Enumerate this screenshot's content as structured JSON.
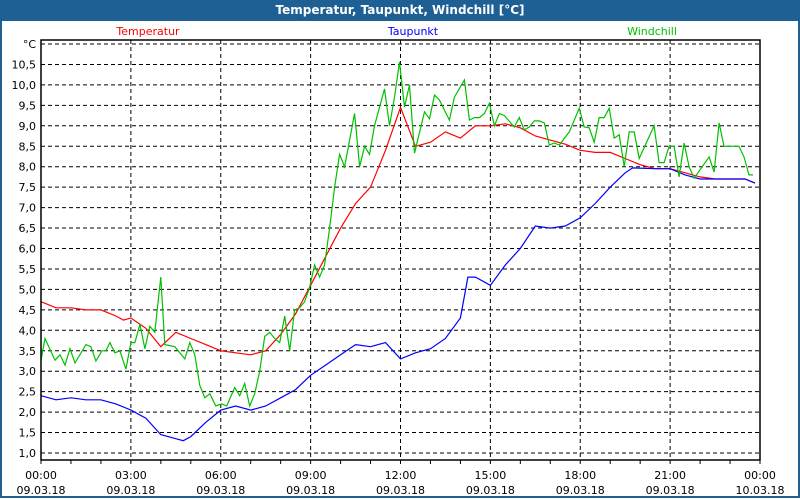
{
  "window": {
    "title": "Temperatur, Taupunkt, Windchill [°C]"
  },
  "chart_data": {
    "type": "line",
    "title": "Temperatur, Taupunkt, Windchill [°C]",
    "ylabel": "°C",
    "ylim": [
      1.0,
      11.0
    ],
    "yticks": [
      "1,0",
      "1,5",
      "2,0",
      "2,5",
      "3,0",
      "3,5",
      "4,0",
      "4,5",
      "5,0",
      "5,5",
      "6,0",
      "6,5",
      "7,0",
      "7,5",
      "8,0",
      "8,5",
      "9,0",
      "9,5",
      "10,0",
      "10,5"
    ],
    "xlim": [
      "09.03.18 00:00",
      "10.03.18 00:00"
    ],
    "xticks": [
      {
        "time": "00:00",
        "date": "09.03.18"
      },
      {
        "time": "03:00",
        "date": "09.03.18"
      },
      {
        "time": "06:00",
        "date": "09.03.18"
      },
      {
        "time": "09:00",
        "date": "09.03.18"
      },
      {
        "time": "12:00",
        "date": "09.03.18"
      },
      {
        "time": "15:00",
        "date": "09.03.18"
      },
      {
        "time": "18:00",
        "date": "09.03.18"
      },
      {
        "time": "21:00",
        "date": "09.03.18"
      },
      {
        "time": "00:00",
        "date": "10.03.18"
      }
    ],
    "grid": true,
    "legend_placement": "top",
    "series": [
      {
        "name": "Temperatur",
        "color": "#ff0000",
        "x": [
          "00:00",
          "00:30",
          "01:00",
          "01:30",
          "02:00",
          "02:30",
          "02:45",
          "03:00",
          "03:30",
          "04:00",
          "04:30",
          "05:00",
          "05:30",
          "06:00",
          "06:30",
          "07:00",
          "07:30",
          "08:00",
          "08:30",
          "09:00",
          "09:30",
          "10:00",
          "10:30",
          "11:00",
          "11:30",
          "12:00",
          "12:30",
          "13:00",
          "13:30",
          "14:00",
          "14:30",
          "15:00",
          "15:30",
          "16:00",
          "16:30",
          "17:00",
          "17:30",
          "18:00",
          "18:30",
          "19:00",
          "19:30",
          "20:00",
          "20:30",
          "21:00",
          "21:30",
          "22:00",
          "22:30",
          "23:00",
          "23:30",
          "23:50"
        ],
        "y": [
          4.7,
          4.55,
          4.55,
          4.5,
          4.5,
          4.35,
          4.25,
          4.3,
          4.05,
          3.6,
          3.95,
          3.8,
          3.65,
          3.5,
          3.45,
          3.4,
          3.5,
          3.9,
          4.4,
          5.1,
          5.8,
          6.5,
          7.1,
          7.5,
          8.4,
          9.45,
          8.5,
          8.6,
          8.85,
          8.7,
          9.0,
          9.0,
          9.05,
          8.95,
          8.75,
          8.65,
          8.55,
          8.4,
          8.35,
          8.35,
          8.2,
          8.05,
          7.95,
          7.95,
          7.85,
          7.75,
          7.7,
          7.7,
          7.7,
          7.6
        ]
      },
      {
        "name": "Taupunkt",
        "color": "#0000ff",
        "x": [
          "00:00",
          "00:30",
          "01:00",
          "01:30",
          "02:00",
          "02:30",
          "03:00",
          "03:30",
          "04:00",
          "04:30",
          "04:45",
          "05:00",
          "05:30",
          "06:00",
          "06:30",
          "07:00",
          "07:30",
          "08:00",
          "08:30",
          "09:00",
          "09:30",
          "10:00",
          "10:30",
          "11:00",
          "11:30",
          "12:00",
          "12:30",
          "13:00",
          "13:30",
          "14:00",
          "14:15",
          "14:30",
          "15:00",
          "15:30",
          "16:00",
          "16:30",
          "17:00",
          "17:30",
          "18:00",
          "18:30",
          "19:00",
          "19:30",
          "19:45",
          "20:30",
          "21:00",
          "21:30",
          "22:00",
          "22:30",
          "23:00",
          "23:30",
          "23:50"
        ],
        "y": [
          2.4,
          2.3,
          2.35,
          2.3,
          2.3,
          2.2,
          2.05,
          1.85,
          1.45,
          1.35,
          1.3,
          1.4,
          1.75,
          2.05,
          2.15,
          2.05,
          2.15,
          2.35,
          2.55,
          2.9,
          3.15,
          3.4,
          3.65,
          3.6,
          3.7,
          3.3,
          3.45,
          3.55,
          3.8,
          4.3,
          5.3,
          5.3,
          5.1,
          5.6,
          6.0,
          6.55,
          6.5,
          6.55,
          6.75,
          7.1,
          7.5,
          7.85,
          7.97,
          7.95,
          7.95,
          7.8,
          7.7,
          7.7,
          7.7,
          7.7,
          7.6
        ]
      },
      {
        "name": "Windchill",
        "color": "#00c000",
        "x": [
          "00:00",
          "00:08",
          "00:28",
          "00:38",
          "00:48",
          "00:58",
          "01:08",
          "01:30",
          "01:40",
          "01:50",
          "02:02",
          "02:10",
          "02:18",
          "02:28",
          "02:38",
          "02:50",
          "03:00",
          "03:08",
          "03:18",
          "03:28",
          "03:38",
          "03:48",
          "04:00",
          "04:08",
          "04:28",
          "04:48",
          "04:58",
          "05:08",
          "05:18",
          "05:28",
          "05:38",
          "05:50",
          "06:02",
          "06:12",
          "06:28",
          "06:38",
          "06:48",
          "06:58",
          "07:08",
          "07:18",
          "07:28",
          "07:38",
          "07:48",
          "07:58",
          "08:08",
          "08:18",
          "08:28",
          "08:38",
          "08:48",
          "08:58",
          "09:08",
          "09:18",
          "09:28",
          "09:38",
          "09:48",
          "09:58",
          "10:08",
          "10:28",
          "10:38",
          "10:48",
          "10:58",
          "11:08",
          "11:28",
          "11:38",
          "11:48",
          "11:58",
          "12:08",
          "12:18",
          "12:28",
          "12:48",
          "12:58",
          "13:08",
          "13:18",
          "13:38",
          "13:48",
          "14:08",
          "14:18",
          "14:28",
          "14:38",
          "14:48",
          "14:58",
          "15:08",
          "15:18",
          "15:28",
          "15:48",
          "15:58",
          "16:08",
          "16:18",
          "16:28",
          "16:38",
          "16:48",
          "16:58",
          "17:08",
          "17:18",
          "17:38",
          "17:58",
          "18:08",
          "18:18",
          "18:28",
          "18:38",
          "18:48",
          "18:58",
          "19:08",
          "19:18",
          "19:28",
          "19:38",
          "19:48",
          "19:58",
          "20:28",
          "20:38",
          "20:48",
          "20:58",
          "21:08",
          "21:18",
          "21:28",
          "21:38",
          "21:48",
          "22:18",
          "22:28",
          "22:38",
          "22:48",
          "23:18",
          "23:28",
          "23:38",
          "23:46"
        ],
        "y": [
          3.27,
          3.8,
          3.27,
          3.4,
          3.15,
          3.55,
          3.2,
          3.65,
          3.6,
          3.25,
          3.5,
          3.5,
          3.7,
          3.45,
          3.5,
          3.05,
          3.7,
          3.7,
          4.15,
          3.55,
          4.1,
          3.95,
          5.3,
          3.65,
          3.6,
          3.3,
          3.7,
          3.4,
          2.65,
          2.35,
          2.45,
          2.15,
          2.2,
          2.15,
          2.6,
          2.4,
          2.7,
          2.15,
          2.45,
          3.0,
          3.85,
          3.95,
          3.8,
          3.7,
          4.35,
          3.5,
          4.5,
          4.55,
          4.7,
          5.05,
          5.6,
          5.3,
          5.6,
          6.5,
          7.5,
          8.3,
          8.0,
          9.3,
          8.0,
          8.5,
          8.3,
          9.0,
          9.9,
          9.0,
          9.7,
          10.56,
          9.46,
          10.0,
          8.33,
          9.34,
          9.17,
          9.75,
          9.63,
          9.14,
          9.7,
          10.12,
          9.14,
          9.2,
          9.2,
          9.3,
          9.55,
          9.0,
          9.3,
          9.25,
          8.97,
          9.2,
          8.9,
          8.97,
          9.12,
          9.12,
          9.07,
          8.53,
          8.58,
          8.53,
          8.85,
          9.43,
          8.97,
          8.95,
          8.6,
          9.2,
          9.2,
          9.43,
          8.7,
          8.78,
          8.0,
          8.85,
          8.85,
          8.2,
          9.0,
          8.1,
          8.1,
          8.5,
          8.5,
          7.75,
          8.58,
          8.0,
          7.72,
          8.24,
          7.87,
          9.07,
          8.5,
          8.5,
          8.24,
          7.8,
          7.8
        ]
      }
    ]
  }
}
